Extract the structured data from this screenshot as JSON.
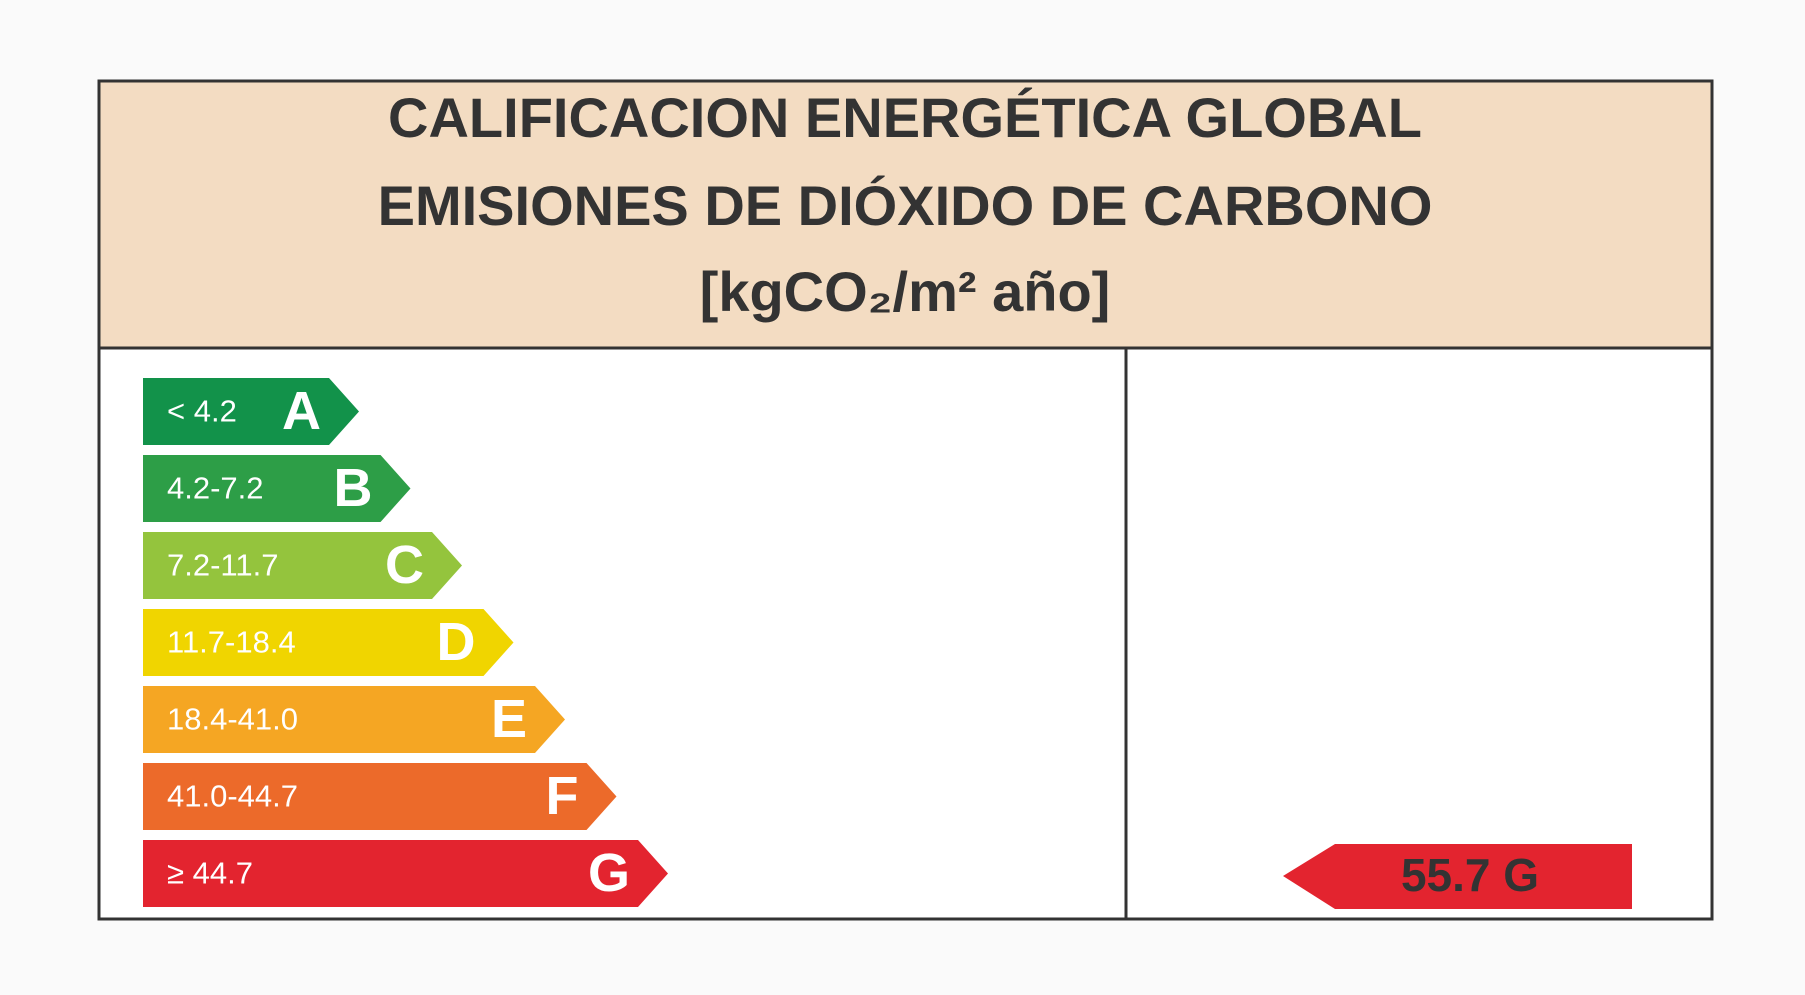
{
  "header": {
    "title_lines": [
      "CALIFICACION ENERGÉTICA GLOBAL",
      "EMISIONES DE DIÓXIDO DE CARBONO",
      "[kgCO₂/m² año]"
    ]
  },
  "ratings": [
    {
      "range": "< 4.2",
      "letter": "A",
      "color": "#12924a"
    },
    {
      "range": "4.2-7.2",
      "letter": "B",
      "color": "#2d9e47"
    },
    {
      "range": "7.2-11.7",
      "letter": "C",
      "color": "#94c43d"
    },
    {
      "range": "11.7-18.4",
      "letter": "D",
      "color": "#f0d500"
    },
    {
      "range": "18.4-41.0",
      "letter": "E",
      "color": "#f5a623"
    },
    {
      "range": "41.0-44.7",
      "letter": "F",
      "color": "#ec6a2a"
    },
    {
      "range": "≥ 44.7",
      "letter": "G",
      "color": "#e3242f"
    }
  ],
  "result": {
    "value": 55.7,
    "letter": "G",
    "color": "#e3242f"
  }
}
